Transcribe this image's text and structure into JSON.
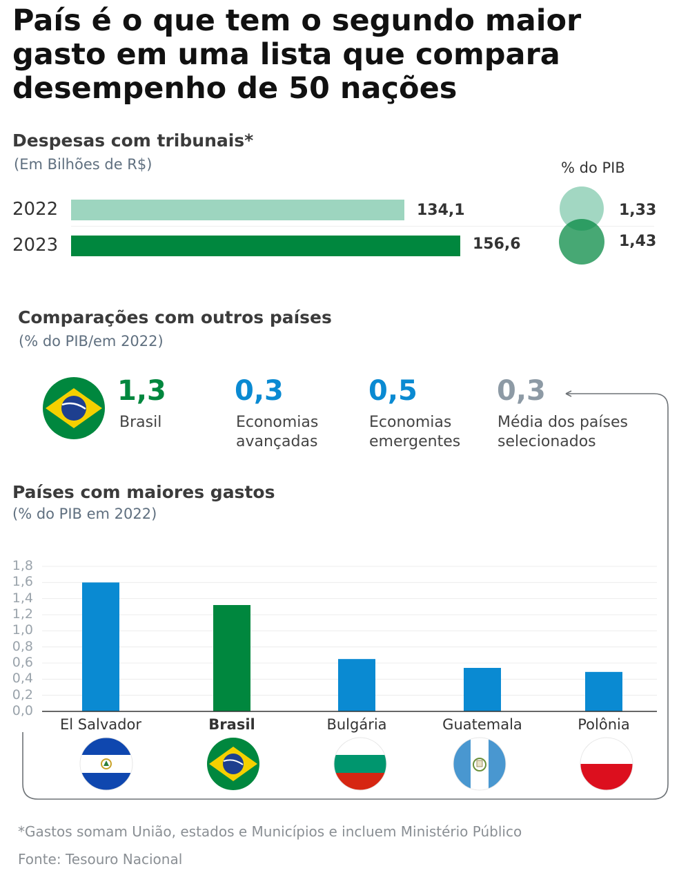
{
  "title": "País é o que tem o segundo maior gasto em uma lista que compara desempenho de 50 nações",
  "spending": {
    "heading": "Despesas com tribunais*",
    "unit": "(Em Bilhões de R$)",
    "pib_heading": "% do PIB",
    "rows": [
      {
        "year": "2022",
        "value": 134.1,
        "value_label": "134,1",
        "pib": 1.33,
        "pib_label": "1,33",
        "color": "#9dd5bf"
      },
      {
        "year": "2023",
        "value": 156.6,
        "value_label": "156,6",
        "pib": 1.43,
        "pib_label": "1,43",
        "color": "#00873e"
      }
    ]
  },
  "comparison": {
    "heading": "Comparações com outros países",
    "unit": "(% do PIB/em 2022)",
    "items": [
      {
        "value": "1,3",
        "label_lines": [
          "Brasil"
        ],
        "color": "#00873e",
        "flag": "brazil-flag-icon"
      },
      {
        "value": "0,3",
        "label_lines": [
          "Economias",
          "avançadas"
        ],
        "color": "#0a8ad2"
      },
      {
        "value": "0,5",
        "label_lines": [
          "Economias",
          "emergentes"
        ],
        "color": "#0a8ad2"
      },
      {
        "value": "0,3",
        "label_lines": [
          "Média dos países",
          "selecionados"
        ],
        "color": "#8d9aa5"
      }
    ]
  },
  "top_spenders": {
    "heading": "Países com maiores gastos",
    "unit": "(% do PIB em 2022)"
  },
  "chart_data": {
    "type": "bar",
    "categories": [
      "El Salvador",
      "Brasil",
      "Bulgária",
      "Guatemala",
      "Polônia"
    ],
    "values": [
      1.6,
      1.32,
      0.65,
      0.54,
      0.49
    ],
    "colors": [
      "#0a8ad2",
      "#00873e",
      "#0a8ad2",
      "#0a8ad2",
      "#0a8ad2"
    ],
    "highlight": "Brasil",
    "ylim": [
      0,
      1.8
    ],
    "yticks": [
      "0,0",
      "0,2",
      "0,4",
      "0,6",
      "0,8",
      "1,0",
      "1,2",
      "1,4",
      "1,6",
      "1,8"
    ],
    "grid": true,
    "flags": [
      "el-salvador-flag-icon",
      "brazil-flag-icon",
      "bulgaria-flag-icon",
      "guatemala-flag-icon",
      "poland-flag-icon"
    ]
  },
  "footnote": "*Gastos somam União, estados e Municípios e incluem Ministério Público",
  "source": "Fonte: Tesouro Nacional"
}
